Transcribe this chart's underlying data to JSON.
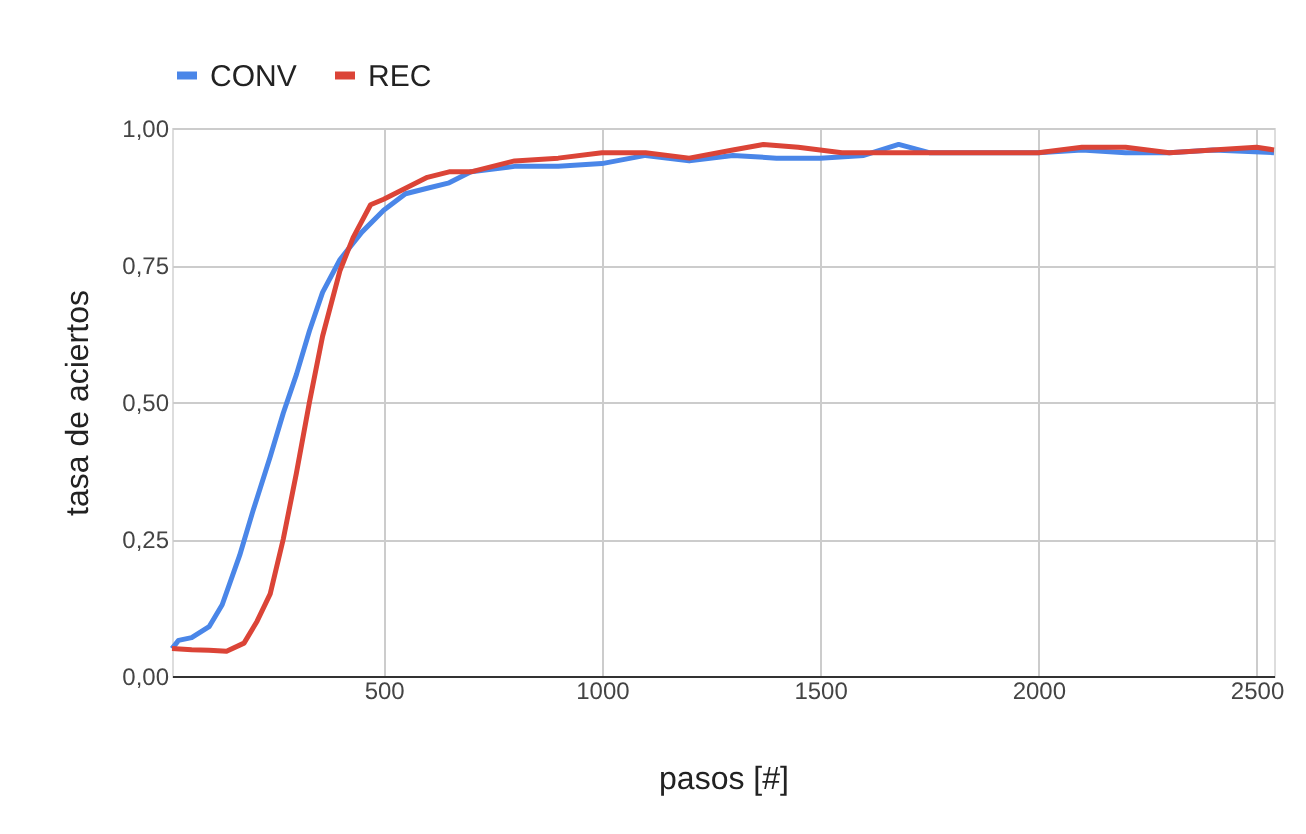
{
  "chart_data": {
    "type": "line",
    "xlabel": "pasos [#]",
    "ylabel": "tasa de aciertos",
    "legend": "top",
    "grid": true,
    "marker": "none",
    "line_style": "solid",
    "xlim": [
      15,
      2540
    ],
    "xticks": [
      500,
      1000,
      1500,
      2000,
      2500
    ],
    "ylim": [
      0,
      1
    ],
    "yticks": [
      {
        "value": 0,
        "label": "0,00"
      },
      {
        "value": 0.25,
        "label": "0,25"
      },
      {
        "value": 0.5,
        "label": "0,50"
      },
      {
        "value": 0.75,
        "label": "0,75"
      },
      {
        "value": 1,
        "label": "1,00"
      }
    ],
    "series": [
      {
        "name": "CONV",
        "color": "#4a86e8",
        "x": [
          15,
          30,
          60,
          100,
          130,
          170,
          200,
          240,
          270,
          300,
          330,
          360,
          400,
          450,
          500,
          550,
          600,
          650,
          700,
          800,
          900,
          1000,
          1100,
          1200,
          1300,
          1400,
          1500,
          1600,
          1680,
          1750,
          1800,
          2000,
          2100,
          2200,
          2300,
          2400,
          2540
        ],
        "values": [
          0.05,
          0.065,
          0.07,
          0.09,
          0.13,
          0.22,
          0.3,
          0.4,
          0.48,
          0.55,
          0.63,
          0.7,
          0.76,
          0.81,
          0.85,
          0.88,
          0.89,
          0.9,
          0.92,
          0.93,
          0.93,
          0.935,
          0.95,
          0.94,
          0.95,
          0.945,
          0.945,
          0.95,
          0.97,
          0.955,
          0.955,
          0.955,
          0.96,
          0.955,
          0.955,
          0.96,
          0.955
        ]
      },
      {
        "name": "REC",
        "color": "#db4437",
        "x": [
          15,
          60,
          100,
          140,
          180,
          210,
          240,
          270,
          300,
          330,
          360,
          400,
          430,
          470,
          500,
          550,
          600,
          650,
          700,
          800,
          900,
          1000,
          1100,
          1200,
          1300,
          1370,
          1450,
          1550,
          1700,
          1800,
          2000,
          2100,
          2200,
          2300,
          2400,
          2500,
          2540
        ],
        "values": [
          0.05,
          0.048,
          0.047,
          0.045,
          0.06,
          0.1,
          0.15,
          0.25,
          0.37,
          0.5,
          0.62,
          0.74,
          0.8,
          0.86,
          0.87,
          0.89,
          0.91,
          0.92,
          0.92,
          0.94,
          0.945,
          0.955,
          0.955,
          0.945,
          0.96,
          0.97,
          0.965,
          0.955,
          0.955,
          0.955,
          0.955,
          0.965,
          0.965,
          0.955,
          0.96,
          0.965,
          0.96
        ]
      }
    ]
  }
}
